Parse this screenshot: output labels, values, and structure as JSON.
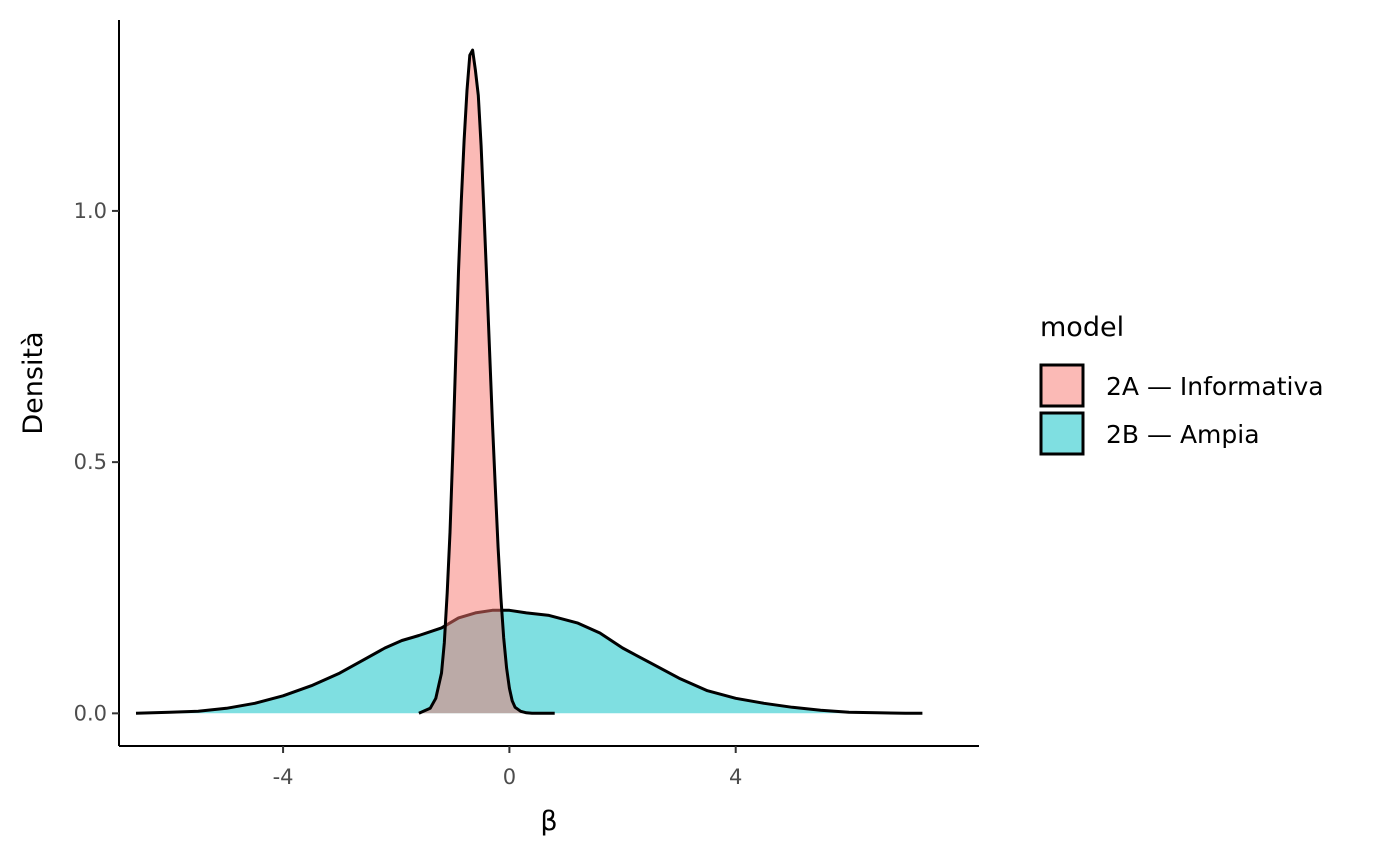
{
  "chart_data": {
    "type": "area",
    "subtype": "density",
    "title": "",
    "xlabel": "β",
    "ylabel": "Densità",
    "xlim": [
      -6.9,
      8.3
    ],
    "ylim": [
      -0.065,
      1.38
    ],
    "x_ticks": [
      -4,
      0,
      4
    ],
    "x_tick_labels": [
      "-4",
      "0",
      "4"
    ],
    "y_ticks": [
      0.0,
      0.5,
      1.0
    ],
    "y_tick_labels": [
      "0.0",
      "0.5",
      "1.0"
    ],
    "grid": false,
    "legend": {
      "title": "model",
      "position": "right"
    },
    "series": [
      {
        "name": "2B — Ampia",
        "color": "#00BFC4",
        "x": [
          -6.6,
          -6.0,
          -5.5,
          -5.0,
          -4.5,
          -4.0,
          -3.5,
          -3.0,
          -2.6,
          -2.2,
          -1.9,
          -1.6,
          -1.2,
          -0.9,
          -0.6,
          -0.3,
          0.0,
          0.3,
          0.7,
          1.2,
          1.6,
          2.0,
          2.5,
          3.0,
          3.5,
          4.0,
          4.5,
          5.0,
          5.5,
          6.0,
          6.5,
          7.0,
          7.3
        ],
        "y": [
          0.0,
          0.002,
          0.004,
          0.01,
          0.02,
          0.035,
          0.055,
          0.08,
          0.105,
          0.13,
          0.145,
          0.155,
          0.17,
          0.19,
          0.2,
          0.205,
          0.205,
          0.2,
          0.195,
          0.18,
          0.16,
          0.13,
          0.1,
          0.07,
          0.045,
          0.03,
          0.02,
          0.012,
          0.006,
          0.002,
          0.001,
          0.0,
          0.0
        ]
      },
      {
        "name": "2A — Informativa",
        "color": "#F8766D",
        "x": [
          -1.6,
          -1.4,
          -1.3,
          -1.2,
          -1.15,
          -1.1,
          -1.05,
          -1.0,
          -0.95,
          -0.9,
          -0.85,
          -0.8,
          -0.75,
          -0.7,
          -0.65,
          -0.6,
          -0.55,
          -0.5,
          -0.45,
          -0.4,
          -0.35,
          -0.3,
          -0.25,
          -0.2,
          -0.15,
          -0.1,
          -0.05,
          0.0,
          0.05,
          0.1,
          0.2,
          0.3,
          0.4,
          0.6,
          0.8
        ],
        "y": [
          0.0,
          0.01,
          0.03,
          0.08,
          0.14,
          0.24,
          0.36,
          0.52,
          0.7,
          0.88,
          1.02,
          1.14,
          1.24,
          1.31,
          1.32,
          1.28,
          1.23,
          1.13,
          1.0,
          0.86,
          0.72,
          0.58,
          0.45,
          0.33,
          0.23,
          0.15,
          0.09,
          0.05,
          0.025,
          0.012,
          0.004,
          0.001,
          0.0,
          0.0,
          0.0
        ]
      }
    ],
    "legend_order": [
      "2A — Informativa",
      "2B — Ampia"
    ]
  }
}
